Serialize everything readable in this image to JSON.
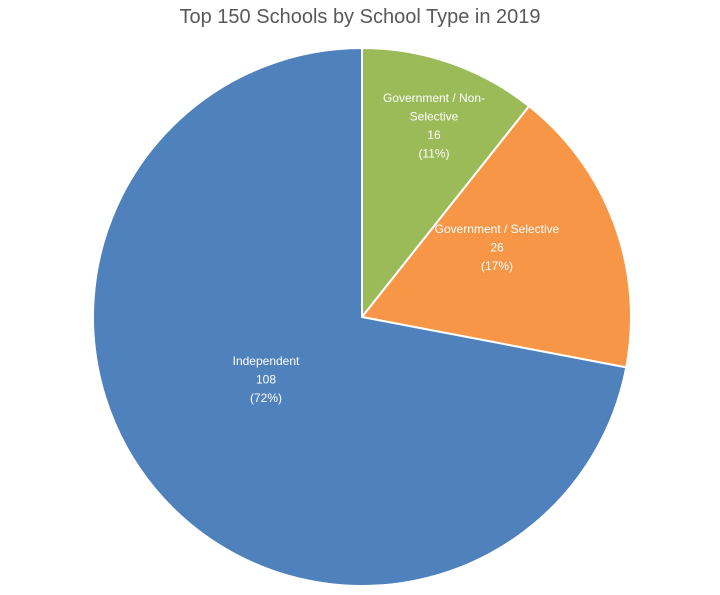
{
  "chart_data": {
    "type": "pie",
    "title": "Top 150 Schools by School Type in 2019",
    "slices": [
      {
        "label_lines": [
          "Government / Non-",
          "Selective"
        ],
        "value": 16,
        "value_text": "16",
        "percent_text": "(11%)",
        "color": "#9BBB59"
      },
      {
        "label_lines": [
          "Government / Selective"
        ],
        "value": 26,
        "value_text": "26",
        "percent_text": "(17%)",
        "color": "#F79646"
      },
      {
        "label_lines": [
          "Independent"
        ],
        "value": 108,
        "value_text": "108",
        "percent_text": "(72%)",
        "color": "#4F81BD"
      }
    ]
  }
}
